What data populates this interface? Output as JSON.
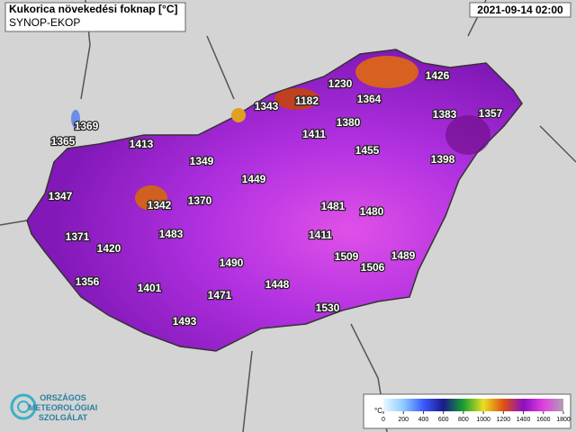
{
  "header": {
    "title": "Kukorica növekedési foknap [°C]",
    "subtitle": "SYNOP-EKOP",
    "timestamp": "2021-09-14 02:00"
  },
  "stations": [
    1369,
    1365,
    1413,
    1349,
    1347,
    1342,
    1370,
    1449,
    1371,
    1420,
    1483,
    1343,
    1182,
    1230,
    1364,
    1426,
    1380,
    1411,
    1383,
    1357,
    1455,
    1398,
    1481,
    1480,
    1411,
    1509,
    1506,
    1489,
    1490,
    1356,
    1401,
    1471,
    1448,
    1530,
    1493
  ],
  "legend": {
    "unit": "°C",
    "ticks": [
      0,
      200,
      400,
      600,
      800,
      1000,
      1200,
      1400,
      1600,
      1800
    ],
    "colors": [
      "#e8f8ff",
      "#8ecbff",
      "#3a5bff",
      "#1a1a8a",
      "#18a030",
      "#e8e020",
      "#e05010",
      "#8a10c0",
      "#e040e0",
      "#b0a0b0"
    ]
  },
  "logo": {
    "lines": [
      "ORSZÁGOS",
      "METEOROLÓGIAI",
      "SZOLGÁLAT"
    ]
  }
}
